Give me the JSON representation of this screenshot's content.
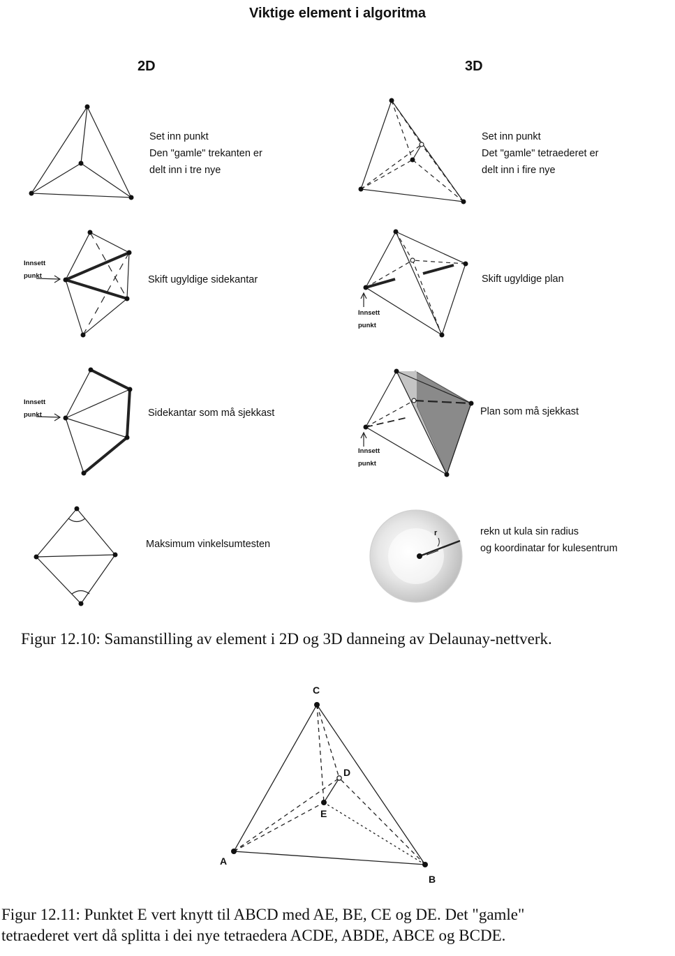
{
  "figure_title": "Viktige element i algoritma",
  "columns": {
    "left": "2D",
    "right": "3D"
  },
  "rows": [
    {
      "left_text": [
        "Set inn punkt",
        "Den \"gamle\" trekanten er",
        "delt inn i tre nye"
      ],
      "right_text": [
        "Set inn punkt",
        "Det \"gamle\" tetraederet er",
        "delt inn i fire nye"
      ]
    },
    {
      "left_text": [
        "Skift ugyldige sidekantar"
      ],
      "right_text": [
        "Skift ugyldige plan"
      ],
      "left_side_label": [
        "Innsett",
        "punkt"
      ],
      "right_side_label": [
        "Innsett",
        "punkt"
      ]
    },
    {
      "left_text": [
        "Sidekantar som må sjekkast"
      ],
      "right_text": [
        "Plan som må sjekkast"
      ],
      "left_side_label": [
        "Innsett",
        "punkt"
      ],
      "right_side_label": [
        "Innsett",
        "punkt"
      ]
    },
    {
      "left_text": [
        "Maksimum vinkelsumtesten"
      ],
      "right_text": [
        "rekn ut kula sin radius",
        "og koordinatar for kulesentrum"
      ],
      "radius_label": "r"
    }
  ],
  "caption_1210": "Figur 12.10: Samanstilling av element i 2D og 3D danneing av Delaunay-nettverk.",
  "points": {
    "C": "C",
    "D": "D",
    "E": "E",
    "A": "A",
    "B": "B"
  },
  "caption_1211": {
    "line1": "Figur 12.11: Punktet E vert knytt til ABCD med AE, BE, CE og DE. Det \"gamle\"",
    "line2": "tetraederet vert då splitta i dei nye tetraedera ACDE, ABDE, ABCE og BCDE."
  }
}
